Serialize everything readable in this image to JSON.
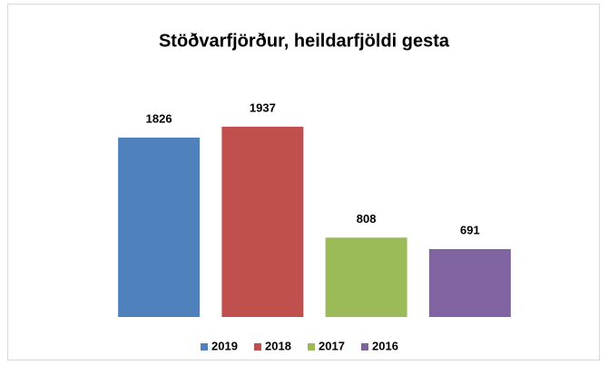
{
  "chart_data": {
    "type": "bar",
    "title": "Stöðvarfjörður, heildarfjöldi gesta",
    "series": [
      {
        "name": "2019",
        "color": "#4f81bd",
        "values": [
          1826
        ]
      },
      {
        "name": "2018",
        "color": "#c0504d",
        "values": [
          1937
        ]
      },
      {
        "name": "2017",
        "color": "#9bbb59",
        "values": [
          808
        ]
      },
      {
        "name": "2016",
        "color": "#8064a2",
        "values": [
          691
        ]
      }
    ],
    "ylim": [
      0,
      2000
    ],
    "legend": "bottom"
  }
}
